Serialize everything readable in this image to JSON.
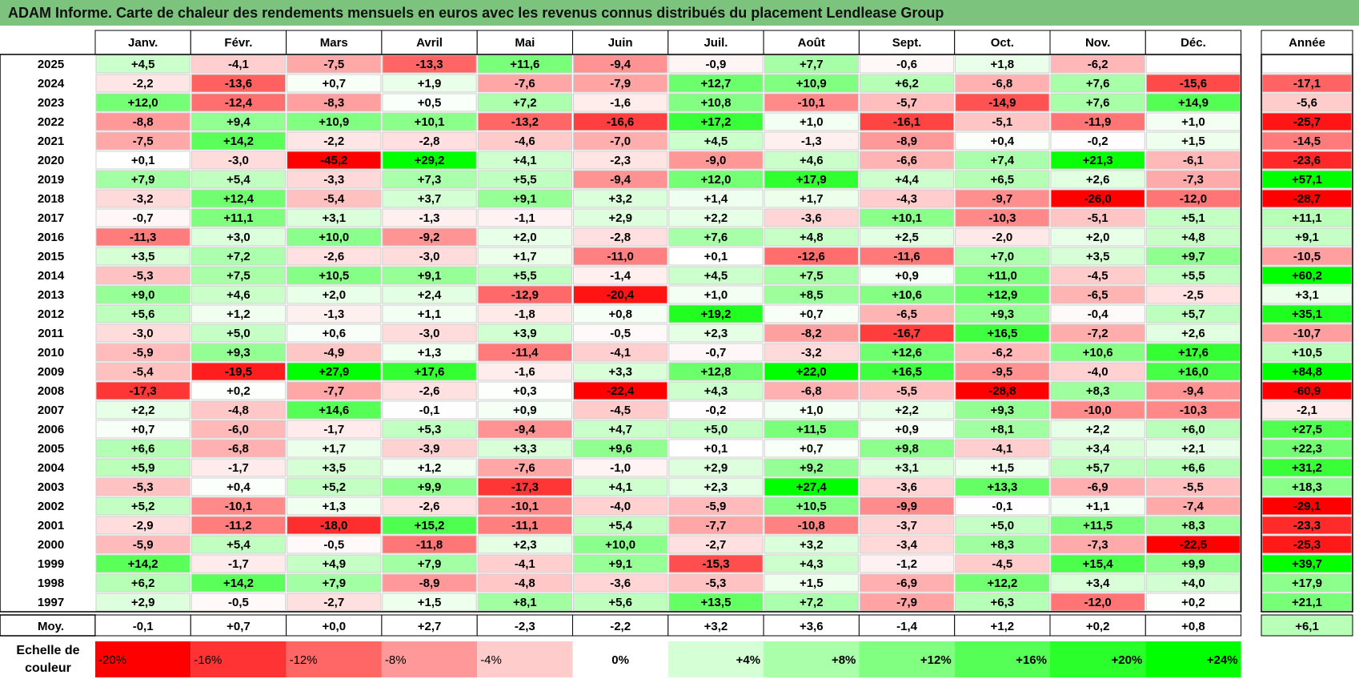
{
  "title": "ADAM Informe. Carte de chaleur des rendements mensuels en euros avec les revenus connus distribués du placement Lendlease Group",
  "colors": {
    "title_bar": "#7cc47e",
    "negative_max": "#ff0000",
    "neutral": "#ffffff",
    "positive_max": "#00ff00"
  },
  "chart_data": {
    "type": "heatmap",
    "title": "ADAM Informe. Carte de chaleur des rendements mensuels en euros avec les revenus connus distribués du placement Lendlease Group",
    "columns": [
      "Janv.",
      "Févr.",
      "Mars",
      "Avril",
      "Mai",
      "Juin",
      "Juil.",
      "Août",
      "Sept.",
      "Oct.",
      "Nov.",
      "Déc."
    ],
    "annual_label": "Année",
    "average_label": "Moy.",
    "rows": [
      {
        "year": "2025",
        "months": [
          "+4,5",
          "-4,1",
          "-7,5",
          "-13,3",
          "+11,6",
          "-9,4",
          "-0,9",
          "+7,7",
          "-0,6",
          "+1,8",
          "-6,2",
          ""
        ],
        "annual": ""
      },
      {
        "year": "2024",
        "months": [
          "-2,2",
          "-13,6",
          "+0,7",
          "+1,9",
          "-7,6",
          "-7,9",
          "+12,7",
          "+10,9",
          "+6,2",
          "-6,8",
          "+7,6",
          "-15,6"
        ],
        "annual": "-17,1"
      },
      {
        "year": "2023",
        "months": [
          "+12,0",
          "-12,4",
          "-8,3",
          "+0,5",
          "+7,2",
          "-1,6",
          "+10,8",
          "-10,1",
          "-5,7",
          "-14,9",
          "+7,6",
          "+14,9"
        ],
        "annual": "-5,6"
      },
      {
        "year": "2022",
        "months": [
          "-8,8",
          "+9,4",
          "+10,9",
          "+10,1",
          "-13,2",
          "-16,6",
          "+17,2",
          "+1,0",
          "-16,1",
          "-5,1",
          "-11,9",
          "+1,0"
        ],
        "annual": "-25,7"
      },
      {
        "year": "2021",
        "months": [
          "-7,5",
          "+14,2",
          "-2,2",
          "-2,8",
          "-4,6",
          "-7,0",
          "+4,5",
          "-1,3",
          "-8,9",
          "+0,4",
          "-0,2",
          "+1,5"
        ],
        "annual": "-14,5"
      },
      {
        "year": "2020",
        "months": [
          "+0,1",
          "-3,0",
          "-45,2",
          "+29,2",
          "+4,1",
          "-2,3",
          "-9,0",
          "+4,6",
          "-6,6",
          "+7,4",
          "+21,3",
          "-6,1"
        ],
        "annual": "-23,6"
      },
      {
        "year": "2019",
        "months": [
          "+7,9",
          "+5,4",
          "-3,3",
          "+7,3",
          "+5,5",
          "-9,4",
          "+12,0",
          "+17,9",
          "+4,4",
          "+6,5",
          "+2,6",
          "-7,3"
        ],
        "annual": "+57,1"
      },
      {
        "year": "2018",
        "months": [
          "-3,2",
          "+12,4",
          "-5,4",
          "+3,7",
          "+9,1",
          "+3,2",
          "+1,4",
          "+1,7",
          "-4,3",
          "-9,7",
          "-26,0",
          "-12,0"
        ],
        "annual": "-28,7"
      },
      {
        "year": "2017",
        "months": [
          "-0,7",
          "+11,1",
          "+3,1",
          "-1,3",
          "-1,1",
          "+2,9",
          "+2,2",
          "-3,6",
          "+10,1",
          "-10,3",
          "-5,1",
          "+5,1"
        ],
        "annual": "+11,1"
      },
      {
        "year": "2016",
        "months": [
          "-11,3",
          "+3,0",
          "+10,0",
          "-9,2",
          "+2,0",
          "-2,8",
          "+7,6",
          "+4,8",
          "+2,5",
          "-2,0",
          "+2,0",
          "+4,8"
        ],
        "annual": "+9,1"
      },
      {
        "year": "2015",
        "months": [
          "+3,5",
          "+7,2",
          "-2,6",
          "-3,0",
          "+1,7",
          "-11,0",
          "+0,1",
          "-12,6",
          "-11,6",
          "+7,0",
          "+3,5",
          "+9,7"
        ],
        "annual": "-10,5"
      },
      {
        "year": "2014",
        "months": [
          "-5,3",
          "+7,5",
          "+10,5",
          "+9,1",
          "+5,5",
          "-1,4",
          "+4,5",
          "+7,5",
          "+0,9",
          "+11,0",
          "-4,5",
          "+5,5"
        ],
        "annual": "+60,2"
      },
      {
        "year": "2013",
        "months": [
          "+9,0",
          "+4,6",
          "+2,0",
          "+2,4",
          "-12,9",
          "-20,4",
          "+1,0",
          "+8,5",
          "+10,6",
          "+12,9",
          "-6,5",
          "-2,5"
        ],
        "annual": "+3,1"
      },
      {
        "year": "2012",
        "months": [
          "+5,6",
          "+1,2",
          "-1,3",
          "+1,1",
          "-1,8",
          "+0,8",
          "+19,2",
          "+0,7",
          "-6,5",
          "+9,3",
          "-0,4",
          "+5,7"
        ],
        "annual": "+35,1"
      },
      {
        "year": "2011",
        "months": [
          "-3,0",
          "+5,0",
          "+0,6",
          "-3,0",
          "+3,9",
          "-0,5",
          "+2,3",
          "-8,2",
          "-16,7",
          "+16,5",
          "-7,2",
          "+2,6"
        ],
        "annual": "-10,7"
      },
      {
        "year": "2010",
        "months": [
          "-5,9",
          "+9,3",
          "-4,9",
          "+1,3",
          "-11,4",
          "-4,1",
          "-0,7",
          "-3,2",
          "+12,6",
          "-6,2",
          "+10,6",
          "+17,6"
        ],
        "annual": "+10,5"
      },
      {
        "year": "2009",
        "months": [
          "-5,4",
          "-19,5",
          "+27,9",
          "+17,6",
          "-1,6",
          "+3,3",
          "+12,8",
          "+22,0",
          "+16,5",
          "-9,5",
          "-4,0",
          "+16,0"
        ],
        "annual": "+84,8"
      },
      {
        "year": "2008",
        "months": [
          "-17,3",
          "+0,2",
          "-7,7",
          "-2,6",
          "+0,3",
          "-22,4",
          "+4,3",
          "-6,8",
          "-5,5",
          "-28,8",
          "+8,3",
          "-9,4"
        ],
        "annual": "-60,9"
      },
      {
        "year": "2007",
        "months": [
          "+2,2",
          "-4,8",
          "+14,6",
          "-0,1",
          "+0,9",
          "-4,5",
          "-0,2",
          "+1,0",
          "+2,2",
          "+9,3",
          "-10,0",
          "-10,3"
        ],
        "annual": "-2,1"
      },
      {
        "year": "2006",
        "months": [
          "+0,7",
          "-6,0",
          "-1,7",
          "+5,3",
          "-9,4",
          "+4,7",
          "+5,0",
          "+11,5",
          "+0,9",
          "+8,1",
          "+2,2",
          "+6,0"
        ],
        "annual": "+27,5"
      },
      {
        "year": "2005",
        "months": [
          "+6,6",
          "-6,8",
          "+1,7",
          "-3,9",
          "+3,3",
          "+9,6",
          "+0,1",
          "+0,7",
          "+9,8",
          "-4,1",
          "+3,4",
          "+2,1"
        ],
        "annual": "+22,3"
      },
      {
        "year": "2004",
        "months": [
          "+5,9",
          "-1,7",
          "+3,5",
          "+1,2",
          "-7,6",
          "-1,0",
          "+2,9",
          "+9,2",
          "+3,1",
          "+1,5",
          "+5,7",
          "+6,6"
        ],
        "annual": "+31,2"
      },
      {
        "year": "2003",
        "months": [
          "-5,3",
          "+0,4",
          "+5,2",
          "+9,9",
          "-17,3",
          "+4,1",
          "+2,3",
          "+27,4",
          "-3,6",
          "+13,3",
          "-6,9",
          "-5,5"
        ],
        "annual": "+18,3"
      },
      {
        "year": "2002",
        "months": [
          "+5,2",
          "-10,1",
          "+1,3",
          "-2,6",
          "-10,1",
          "-4,0",
          "-5,9",
          "+10,5",
          "-9,9",
          "-0,1",
          "+1,1",
          "-7,4"
        ],
        "annual": "-29,1"
      },
      {
        "year": "2001",
        "months": [
          "-2,9",
          "-11,2",
          "-18,0",
          "+15,2",
          "-11,1",
          "+5,4",
          "-7,7",
          "-10,8",
          "-3,7",
          "+5,0",
          "+11,5",
          "+8,3"
        ],
        "annual": "-23,3"
      },
      {
        "year": "2000",
        "months": [
          "-5,9",
          "+5,4",
          "-0,5",
          "-11,8",
          "+2,3",
          "+10,0",
          "-2,7",
          "+3,2",
          "-3,4",
          "+8,3",
          "-7,3",
          "-22,5"
        ],
        "annual": "-25,3"
      },
      {
        "year": "1999",
        "months": [
          "+14,2",
          "-1,7",
          "+4,9",
          "+7,9",
          "-4,1",
          "+9,1",
          "-15,3",
          "+4,3",
          "-1,2",
          "-4,5",
          "+15,4",
          "+9,9"
        ],
        "annual": "+39,7"
      },
      {
        "year": "1998",
        "months": [
          "+6,2",
          "+14,2",
          "+7,9",
          "-8,9",
          "-4,8",
          "-3,6",
          "-5,3",
          "+1,5",
          "-6,9",
          "+12,2",
          "+3,4",
          "+4,0"
        ],
        "annual": "+17,9"
      },
      {
        "year": "1997",
        "months": [
          "+2,9",
          "-0,5",
          "-2,7",
          "+1,5",
          "+8,1",
          "+5,6",
          "+13,5",
          "+7,2",
          "-7,9",
          "+6,3",
          "-12,0",
          "+0,2"
        ],
        "annual": "+21,1"
      }
    ],
    "averages": {
      "months": [
        "-0,1",
        "+0,7",
        "+0,0",
        "+2,7",
        "-2,3",
        "-2,2",
        "+3,2",
        "+3,6",
        "-1,4",
        "+1,2",
        "+0,2",
        "+0,8"
      ],
      "annual": "+6,1"
    },
    "color_scale": {
      "label": "Echelle de couleur",
      "steps": [
        "-20%",
        "-16%",
        "-12%",
        "-8%",
        "-4%",
        "0%",
        "+4%",
        "+8%",
        "+12%",
        "+16%",
        "+20%",
        "+24%"
      ]
    }
  }
}
